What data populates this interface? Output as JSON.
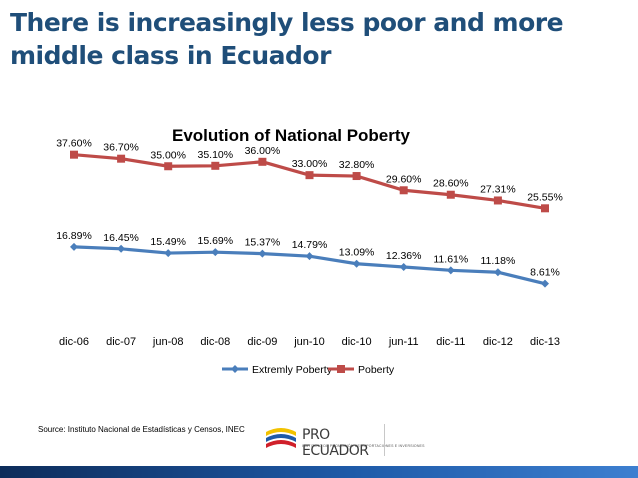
{
  "slide": {
    "title": "There is increasingly less poor and more middle class in Ecuador",
    "source": "Source: Instituto Nacional de Estadísticas y Censos, INEC"
  },
  "logo": {
    "name": "PRO ECUADOR",
    "tagline": "INSTITUTO DE PROMOCIÓN DE EXPORTACIONES E INVERSIONES"
  },
  "colors": {
    "title": "#1f4e79",
    "extreme": "#4a7ebb",
    "poverty": "#be4b48",
    "band": "#1e5aa8"
  },
  "chart_data": {
    "type": "line",
    "title": "Evolution of National Poberty",
    "categories": [
      "dic-06",
      "dic-07",
      "jun-08",
      "dic-08",
      "dic-09",
      "jun-10",
      "dic-10",
      "jun-11",
      "dic-11",
      "dic-12",
      "dic-13"
    ],
    "series": [
      {
        "name": "Extremly Poberty",
        "marker": "diamond",
        "values": [
          16.89,
          16.45,
          15.49,
          15.69,
          15.37,
          14.79,
          13.09,
          12.36,
          11.61,
          11.18,
          8.61
        ],
        "labels": [
          "16.89%",
          "16.45%",
          "15.49%",
          "15.69%",
          "15.37%",
          "14.79%",
          "13.09%",
          "12.36%",
          "11.61%",
          "11.18%",
          "8.61%"
        ]
      },
      {
        "name": "Poberty",
        "marker": "square",
        "values": [
          37.6,
          36.7,
          35.0,
          35.1,
          36.0,
          33.0,
          32.8,
          29.6,
          28.6,
          27.31,
          25.55
        ],
        "labels": [
          "37.60%",
          "36.70%",
          "35.00%",
          "35.10%",
          "36.00%",
          "33.00%",
          "32.80%",
          "29.60%",
          "28.60%",
          "27.31%",
          "25.55%"
        ]
      }
    ],
    "legend_position": "bottom",
    "grid": false,
    "y_axis_visible": false,
    "ylim": [
      0,
      40
    ]
  }
}
